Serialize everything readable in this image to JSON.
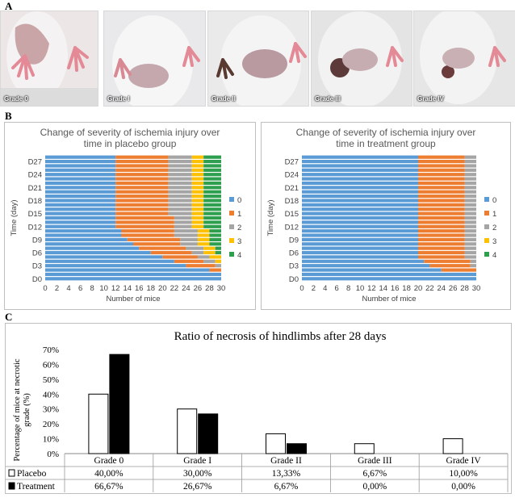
{
  "panels": {
    "a": "A",
    "b": "B",
    "c": "C"
  },
  "photos": [
    {
      "label": "Grade 0"
    },
    {
      "label": "Grade I"
    },
    {
      "label": "Grade II"
    },
    {
      "label": "Grade III"
    },
    {
      "label": "Grade IV"
    }
  ],
  "colors": {
    "grade0": "#5B9BD5",
    "grade1": "#ED7D31",
    "grade2": "#A5A5A5",
    "grade3": "#FFC000",
    "grade4": "#2E9E4F"
  },
  "chart_data": [
    {
      "type": "bar",
      "orientation": "horizontal-stacked",
      "title_lines": [
        "Change of severity of ischemia injury over",
        "time in placebo group"
      ],
      "xlabel": "Number of mice",
      "ylabel": "Time (day)",
      "xlim": [
        0,
        30
      ],
      "x_ticks": [
        "0",
        "2",
        "4",
        "6",
        "8",
        "10",
        "12",
        "14",
        "16",
        "18",
        "20",
        "22",
        "24",
        "26",
        "28",
        "30"
      ],
      "y_ticks": [
        "D0",
        "D3",
        "D6",
        "D9",
        "D12",
        "D15",
        "D18",
        "D21",
        "D24",
        "D27"
      ],
      "legend": [
        "0",
        "1",
        "2",
        "3",
        "4"
      ],
      "series_by_day_note": "counts of mice at grade 0/1/2/3/4 for each day D0..D28",
      "rows": [
        {
          "day": "D0",
          "counts": [
            30,
            0,
            0,
            0,
            0
          ]
        },
        {
          "day": "D1",
          "counts": [
            30,
            0,
            0,
            0,
            0
          ]
        },
        {
          "day": "D2",
          "counts": [
            28,
            2,
            0,
            0,
            0
          ]
        },
        {
          "day": "D3",
          "counts": [
            24,
            5,
            1,
            0,
            0
          ]
        },
        {
          "day": "D4",
          "counts": [
            22,
            5,
            2,
            1,
            0
          ]
        },
        {
          "day": "D5",
          "counts": [
            20,
            6,
            2,
            2,
            0
          ]
        },
        {
          "day": "D6",
          "counts": [
            18,
            7,
            2,
            2,
            1
          ]
        },
        {
          "day": "D7",
          "counts": [
            16,
            8,
            3,
            2,
            1
          ]
        },
        {
          "day": "D8",
          "counts": [
            15,
            8,
            3,
            2,
            2
          ]
        },
        {
          "day": "D9",
          "counts": [
            14,
            9,
            3,
            2,
            2
          ]
        },
        {
          "day": "D10",
          "counts": [
            13,
            9,
            4,
            2,
            2
          ]
        },
        {
          "day": "D11",
          "counts": [
            13,
            9,
            4,
            2,
            2
          ]
        },
        {
          "day": "D12",
          "counts": [
            12,
            10,
            3,
            2,
            3
          ]
        },
        {
          "day": "D13",
          "counts": [
            12,
            10,
            3,
            2,
            3
          ]
        },
        {
          "day": "D14",
          "counts": [
            12,
            10,
            3,
            2,
            3
          ]
        },
        {
          "day": "D15",
          "counts": [
            12,
            9,
            4,
            2,
            3
          ]
        },
        {
          "day": "D16",
          "counts": [
            12,
            9,
            4,
            2,
            3
          ]
        },
        {
          "day": "D17",
          "counts": [
            12,
            9,
            4,
            2,
            3
          ]
        },
        {
          "day": "D18",
          "counts": [
            12,
            9,
            4,
            2,
            3
          ]
        },
        {
          "day": "D19",
          "counts": [
            12,
            9,
            4,
            2,
            3
          ]
        },
        {
          "day": "D20",
          "counts": [
            12,
            9,
            4,
            2,
            3
          ]
        },
        {
          "day": "D21",
          "counts": [
            12,
            9,
            4,
            2,
            3
          ]
        },
        {
          "day": "D22",
          "counts": [
            12,
            9,
            4,
            2,
            3
          ]
        },
        {
          "day": "D23",
          "counts": [
            12,
            9,
            4,
            2,
            3
          ]
        },
        {
          "day": "D24",
          "counts": [
            12,
            9,
            4,
            2,
            3
          ]
        },
        {
          "day": "D25",
          "counts": [
            12,
            9,
            4,
            2,
            3
          ]
        },
        {
          "day": "D26",
          "counts": [
            12,
            9,
            4,
            2,
            3
          ]
        },
        {
          "day": "D27",
          "counts": [
            12,
            9,
            4,
            2,
            3
          ]
        },
        {
          "day": "D28",
          "counts": [
            12,
            9,
            4,
            2,
            3
          ]
        }
      ]
    },
    {
      "type": "bar",
      "orientation": "horizontal-stacked",
      "title_lines": [
        "Change of severity of ischemia injury over",
        "time in treatment group"
      ],
      "xlabel": "Number of mice",
      "ylabel": "Time (day)",
      "xlim": [
        0,
        30
      ],
      "x_ticks": [
        "0",
        "2",
        "4",
        "6",
        "8",
        "10",
        "12",
        "14",
        "16",
        "18",
        "20",
        "22",
        "24",
        "26",
        "28",
        "30"
      ],
      "y_ticks": [
        "D0",
        "D3",
        "D6",
        "D9",
        "D12",
        "D15",
        "D18",
        "D21",
        "D24",
        "D27"
      ],
      "legend": [
        "0",
        "1",
        "2",
        "3",
        "4"
      ],
      "rows": [
        {
          "day": "D0",
          "counts": [
            30,
            0,
            0,
            0,
            0
          ]
        },
        {
          "day": "D1",
          "counts": [
            30,
            0,
            0,
            0,
            0
          ]
        },
        {
          "day": "D2",
          "counts": [
            24,
            6,
            0,
            0,
            0
          ]
        },
        {
          "day": "D3",
          "counts": [
            22,
            7,
            1,
            0,
            0
          ]
        },
        {
          "day": "D4",
          "counts": [
            21,
            8,
            1,
            0,
            0
          ]
        },
        {
          "day": "D5",
          "counts": [
            20,
            8,
            2,
            0,
            0
          ]
        },
        {
          "day": "D6",
          "counts": [
            20,
            8,
            2,
            0,
            0
          ]
        },
        {
          "day": "D7",
          "counts": [
            20,
            8,
            2,
            0,
            0
          ]
        },
        {
          "day": "D8",
          "counts": [
            20,
            8,
            2,
            0,
            0
          ]
        },
        {
          "day": "D9",
          "counts": [
            20,
            8,
            2,
            0,
            0
          ]
        },
        {
          "day": "D10",
          "counts": [
            20,
            8,
            2,
            0,
            0
          ]
        },
        {
          "day": "D11",
          "counts": [
            20,
            8,
            2,
            0,
            0
          ]
        },
        {
          "day": "D12",
          "counts": [
            20,
            8,
            2,
            0,
            0
          ]
        },
        {
          "day": "D13",
          "counts": [
            20,
            8,
            2,
            0,
            0
          ]
        },
        {
          "day": "D14",
          "counts": [
            20,
            8,
            2,
            0,
            0
          ]
        },
        {
          "day": "D15",
          "counts": [
            20,
            8,
            2,
            0,
            0
          ]
        },
        {
          "day": "D16",
          "counts": [
            20,
            8,
            2,
            0,
            0
          ]
        },
        {
          "day": "D17",
          "counts": [
            20,
            8,
            2,
            0,
            0
          ]
        },
        {
          "day": "D18",
          "counts": [
            20,
            8,
            2,
            0,
            0
          ]
        },
        {
          "day": "D19",
          "counts": [
            20,
            8,
            2,
            0,
            0
          ]
        },
        {
          "day": "D20",
          "counts": [
            20,
            8,
            2,
            0,
            0
          ]
        },
        {
          "day": "D21",
          "counts": [
            20,
            8,
            2,
            0,
            0
          ]
        },
        {
          "day": "D22",
          "counts": [
            20,
            8,
            2,
            0,
            0
          ]
        },
        {
          "day": "D23",
          "counts": [
            20,
            8,
            2,
            0,
            0
          ]
        },
        {
          "day": "D24",
          "counts": [
            20,
            8,
            2,
            0,
            0
          ]
        },
        {
          "day": "D25",
          "counts": [
            20,
            8,
            2,
            0,
            0
          ]
        },
        {
          "day": "D26",
          "counts": [
            20,
            8,
            2,
            0,
            0
          ]
        },
        {
          "day": "D27",
          "counts": [
            20,
            8,
            2,
            0,
            0
          ]
        },
        {
          "day": "D28",
          "counts": [
            20,
            8,
            2,
            0,
            0
          ]
        }
      ]
    },
    {
      "type": "bar",
      "title": "Ratio of necrosis of hindlimbs after 28 days",
      "ylabel": "Percentage of mice at necrotic grade (%)",
      "ylim": [
        0,
        70
      ],
      "y_ticks": [
        "0%",
        "10%",
        "20%",
        "30%",
        "40%",
        "50%",
        "60%",
        "70%"
      ],
      "categories": [
        "Grade 0",
        "Grade I",
        "Grade II",
        "Grade III",
        "Grade IV"
      ],
      "series": [
        {
          "name": "Placebo",
          "values": [
            40.0,
            30.0,
            13.33,
            6.67,
            10.0
          ],
          "labels": [
            "40,00%",
            "30,00%",
            "13,33%",
            "6,67%",
            "10,00%"
          ],
          "fill": "#ffffff"
        },
        {
          "name": "Treatment",
          "values": [
            66.67,
            26.67,
            6.67,
            0.0,
            0.0
          ],
          "labels": [
            "66,67%",
            "26,67%",
            "6,67%",
            "0,00%",
            "0,00%"
          ],
          "fill": "#000000"
        }
      ]
    }
  ]
}
